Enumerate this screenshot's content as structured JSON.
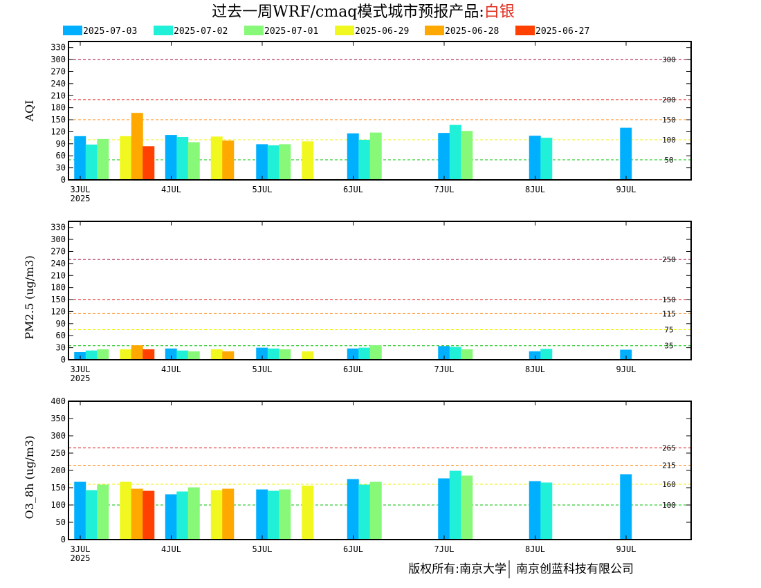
{
  "title": {
    "main": "过去一周WRF/cmaq模式城市预报产品:",
    "city": "白银",
    "city_color": "#e03020"
  },
  "legend": [
    {
      "label": "2025-07-03",
      "color": "#00b0ff"
    },
    {
      "label": "2025-07-02",
      "color": "#20f0d8"
    },
    {
      "label": "2025-07-01",
      "color": "#88f878"
    },
    {
      "label": "2025-06-29",
      "color": "#f0f820"
    },
    {
      "label": "2025-06-28",
      "color": "#ffa800"
    },
    {
      "label": "2025-06-27",
      "color": "#ff4000"
    }
  ],
  "footer": {
    "left": "版权所有:南京大学",
    "right": "南京创蓝科技有限公司"
  },
  "chart_data": [
    {
      "type": "bar",
      "ylabel": "AQI",
      "ylim": [
        0,
        345
      ],
      "yticks": [
        0,
        30,
        60,
        90,
        120,
        150,
        180,
        210,
        240,
        270,
        300,
        330
      ],
      "xlim_days": [
        0,
        7
      ],
      "xticks": [
        {
          "day": 0,
          "label": "3JUL",
          "sub": "2025"
        },
        {
          "day": 1,
          "label": "4JUL",
          "sub": ""
        },
        {
          "day": 2,
          "label": "5JUL",
          "sub": ""
        },
        {
          "day": 3,
          "label": "6JUL",
          "sub": ""
        },
        {
          "day": 4,
          "label": "7JUL",
          "sub": ""
        },
        {
          "day": 5,
          "label": "8JUL",
          "sub": ""
        },
        {
          "day": 6,
          "label": "9JUL",
          "sub": ""
        }
      ],
      "thresholds": [
        {
          "value": 300,
          "color": "#a0003c",
          "label": "300"
        },
        {
          "value": 200,
          "color": "#e00000",
          "label": "200"
        },
        {
          "value": 150,
          "color": "#ff8000",
          "label": "150"
        },
        {
          "value": 100,
          "color": "#f0f000",
          "label": "100"
        },
        {
          "value": 50,
          "color": "#00c000",
          "label": "50"
        }
      ],
      "bars": [
        {
          "day": 0,
          "slot": 0,
          "series": 0,
          "value": 109
        },
        {
          "day": 0,
          "slot": 1,
          "series": 1,
          "value": 88
        },
        {
          "day": 0,
          "slot": 2,
          "series": 2,
          "value": 102
        },
        {
          "day": 0,
          "slot": 4,
          "series": 3,
          "value": 109
        },
        {
          "day": 0,
          "slot": 5,
          "series": 4,
          "value": 167
        },
        {
          "day": 0,
          "slot": 6,
          "series": 5,
          "value": 84
        },
        {
          "day": 1,
          "slot": 0,
          "series": 0,
          "value": 112
        },
        {
          "day": 1,
          "slot": 1,
          "series": 1,
          "value": 107
        },
        {
          "day": 1,
          "slot": 2,
          "series": 2,
          "value": 94
        },
        {
          "day": 1,
          "slot": 4,
          "series": 3,
          "value": 108
        },
        {
          "day": 1,
          "slot": 5,
          "series": 4,
          "value": 98
        },
        {
          "day": 2,
          "slot": 0,
          "series": 0,
          "value": 89
        },
        {
          "day": 2,
          "slot": 1,
          "series": 1,
          "value": 86
        },
        {
          "day": 2,
          "slot": 2,
          "series": 2,
          "value": 89
        },
        {
          "day": 2,
          "slot": 4,
          "series": 3,
          "value": 96
        },
        {
          "day": 3,
          "slot": 0,
          "series": 0,
          "value": 116
        },
        {
          "day": 3,
          "slot": 1,
          "series": 1,
          "value": 100
        },
        {
          "day": 3,
          "slot": 2,
          "series": 2,
          "value": 118
        },
        {
          "day": 4,
          "slot": 0,
          "series": 0,
          "value": 117
        },
        {
          "day": 4,
          "slot": 1,
          "series": 1,
          "value": 137
        },
        {
          "day": 4,
          "slot": 2,
          "series": 2,
          "value": 122
        },
        {
          "day": 5,
          "slot": 0,
          "series": 0,
          "value": 110
        },
        {
          "day": 5,
          "slot": 1,
          "series": 1,
          "value": 105
        },
        {
          "day": 6,
          "slot": 0,
          "series": 0,
          "value": 130
        }
      ]
    },
    {
      "type": "bar",
      "ylabel": "PM2.5 (ug/m3)",
      "ylim": [
        0,
        345
      ],
      "yticks": [
        0,
        30,
        60,
        90,
        120,
        150,
        180,
        210,
        240,
        270,
        300,
        330
      ],
      "xlim_days": [
        0,
        7
      ],
      "xticks": [
        {
          "day": 0,
          "label": "3JUL",
          "sub": "2025"
        },
        {
          "day": 1,
          "label": "4JUL",
          "sub": ""
        },
        {
          "day": 2,
          "label": "5JUL",
          "sub": ""
        },
        {
          "day": 3,
          "label": "6JUL",
          "sub": ""
        },
        {
          "day": 4,
          "label": "7JUL",
          "sub": ""
        },
        {
          "day": 5,
          "label": "8JUL",
          "sub": ""
        },
        {
          "day": 6,
          "label": "9JUL",
          "sub": ""
        }
      ],
      "thresholds": [
        {
          "value": 250,
          "color": "#a0003c",
          "label": "250"
        },
        {
          "value": 150,
          "color": "#e00000",
          "label": "150"
        },
        {
          "value": 115,
          "color": "#ff8000",
          "label": "115"
        },
        {
          "value": 75,
          "color": "#f0f000",
          "label": "75"
        },
        {
          "value": 35,
          "color": "#00c000",
          "label": "35"
        }
      ],
      "bars": [
        {
          "day": 0,
          "slot": 0,
          "series": 0,
          "value": 19
        },
        {
          "day": 0,
          "slot": 1,
          "series": 1,
          "value": 23
        },
        {
          "day": 0,
          "slot": 2,
          "series": 2,
          "value": 26
        },
        {
          "day": 0,
          "slot": 4,
          "series": 3,
          "value": 26
        },
        {
          "day": 0,
          "slot": 5,
          "series": 4,
          "value": 36
        },
        {
          "day": 0,
          "slot": 6,
          "series": 5,
          "value": 26
        },
        {
          "day": 1,
          "slot": 0,
          "series": 0,
          "value": 28
        },
        {
          "day": 1,
          "slot": 1,
          "series": 1,
          "value": 23
        },
        {
          "day": 1,
          "slot": 2,
          "series": 2,
          "value": 21
        },
        {
          "day": 1,
          "slot": 4,
          "series": 3,
          "value": 26
        },
        {
          "day": 1,
          "slot": 5,
          "series": 4,
          "value": 21
        },
        {
          "day": 2,
          "slot": 0,
          "series": 0,
          "value": 30
        },
        {
          "day": 2,
          "slot": 1,
          "series": 1,
          "value": 28
        },
        {
          "day": 2,
          "slot": 2,
          "series": 2,
          "value": 26
        },
        {
          "day": 2,
          "slot": 4,
          "series": 3,
          "value": 21
        },
        {
          "day": 3,
          "slot": 0,
          "series": 0,
          "value": 28
        },
        {
          "day": 3,
          "slot": 1,
          "series": 1,
          "value": 30
        },
        {
          "day": 3,
          "slot": 2,
          "series": 2,
          "value": 36
        },
        {
          "day": 4,
          "slot": 0,
          "series": 0,
          "value": 34
        },
        {
          "day": 4,
          "slot": 1,
          "series": 1,
          "value": 32
        },
        {
          "day": 4,
          "slot": 2,
          "series": 2,
          "value": 26
        },
        {
          "day": 5,
          "slot": 0,
          "series": 0,
          "value": 21
        },
        {
          "day": 5,
          "slot": 1,
          "series": 1,
          "value": 27
        },
        {
          "day": 6,
          "slot": 0,
          "series": 0,
          "value": 25
        }
      ]
    },
    {
      "type": "bar",
      "ylabel": "O3_8h (ug/m3)",
      "ylim": [
        0,
        400
      ],
      "yticks": [
        0,
        50,
        100,
        150,
        200,
        250,
        300,
        350,
        400
      ],
      "xlim_days": [
        0,
        7
      ],
      "xticks": [
        {
          "day": 0,
          "label": "3JUL",
          "sub": "2025"
        },
        {
          "day": 1,
          "label": "4JUL",
          "sub": ""
        },
        {
          "day": 2,
          "label": "5JUL",
          "sub": ""
        },
        {
          "day": 3,
          "label": "6JUL",
          "sub": ""
        },
        {
          "day": 4,
          "label": "7JUL",
          "sub": ""
        },
        {
          "day": 5,
          "label": "8JUL",
          "sub": ""
        },
        {
          "day": 6,
          "label": "9JUL",
          "sub": ""
        }
      ],
      "thresholds": [
        {
          "value": 265,
          "color": "#e00000",
          "label": "265"
        },
        {
          "value": 215,
          "color": "#ff8000",
          "label": "215"
        },
        {
          "value": 160,
          "color": "#f0f000",
          "label": "160"
        },
        {
          "value": 100,
          "color": "#00c000",
          "label": "100"
        }
      ],
      "bars": [
        {
          "day": 0,
          "slot": 0,
          "series": 0,
          "value": 167
        },
        {
          "day": 0,
          "slot": 1,
          "series": 1,
          "value": 143
        },
        {
          "day": 0,
          "slot": 2,
          "series": 2,
          "value": 159
        },
        {
          "day": 0,
          "slot": 4,
          "series": 3,
          "value": 167
        },
        {
          "day": 0,
          "slot": 5,
          "series": 4,
          "value": 147
        },
        {
          "day": 0,
          "slot": 6,
          "series": 5,
          "value": 141
        },
        {
          "day": 1,
          "slot": 0,
          "series": 0,
          "value": 131
        },
        {
          "day": 1,
          "slot": 1,
          "series": 1,
          "value": 139
        },
        {
          "day": 1,
          "slot": 2,
          "series": 2,
          "value": 151
        },
        {
          "day": 1,
          "slot": 4,
          "series": 3,
          "value": 143
        },
        {
          "day": 1,
          "slot": 5,
          "series": 4,
          "value": 147
        },
        {
          "day": 2,
          "slot": 0,
          "series": 0,
          "value": 145
        },
        {
          "day": 2,
          "slot": 1,
          "series": 1,
          "value": 141
        },
        {
          "day": 2,
          "slot": 2,
          "series": 2,
          "value": 145
        },
        {
          "day": 2,
          "slot": 4,
          "series": 3,
          "value": 156
        },
        {
          "day": 3,
          "slot": 0,
          "series": 0,
          "value": 175
        },
        {
          "day": 3,
          "slot": 1,
          "series": 1,
          "value": 159
        },
        {
          "day": 3,
          "slot": 2,
          "series": 2,
          "value": 167
        },
        {
          "day": 4,
          "slot": 0,
          "series": 0,
          "value": 177
        },
        {
          "day": 4,
          "slot": 1,
          "series": 1,
          "value": 199
        },
        {
          "day": 4,
          "slot": 2,
          "series": 2,
          "value": 185
        },
        {
          "day": 5,
          "slot": 0,
          "series": 0,
          "value": 169
        },
        {
          "day": 5,
          "slot": 1,
          "series": 1,
          "value": 165
        },
        {
          "day": 6,
          "slot": 0,
          "series": 0,
          "value": 189
        }
      ]
    }
  ]
}
